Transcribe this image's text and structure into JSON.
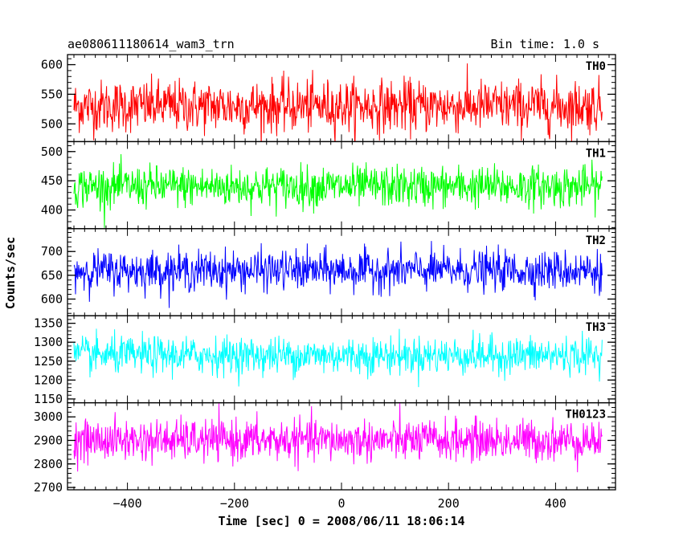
{
  "header": {
    "title": "ae080611180614_wam3_trn",
    "bin_time": "Bin time: 1.0 s"
  },
  "chart_data": {
    "type": "line",
    "xlabel": "Time [sec] 0 = 2008/06/11 18:06:14",
    "ylabel": "Counts/sec",
    "xlim": [
      -512,
      512
    ],
    "x_range": [
      -500,
      487
    ],
    "x_ticks": [
      -400,
      -200,
      0,
      200,
      400
    ],
    "grid": false,
    "panels": [
      {
        "name": "TH0",
        "color": "#ff0000",
        "mean": 530,
        "spread": 40,
        "ylim": [
          470,
          617
        ],
        "y_ticks": [
          500,
          550,
          600
        ]
      },
      {
        "name": "TH1",
        "color": "#00ff00",
        "mean": 440,
        "spread": 32,
        "ylim": [
          368,
          517
        ],
        "y_ticks": [
          400,
          450,
          500
        ]
      },
      {
        "name": "TH2",
        "color": "#0000ff",
        "mean": 660,
        "spread": 38,
        "ylim": [
          565,
          748
        ],
        "y_ticks": [
          600,
          650,
          700
        ]
      },
      {
        "name": "TH3",
        "color": "#00ffff",
        "mean": 1265,
        "spread": 45,
        "ylim": [
          1140,
          1370
        ],
        "y_ticks": [
          1150,
          1200,
          1250,
          1300,
          1350
        ]
      },
      {
        "name": "TH0123",
        "color": "#ff00ff",
        "mean": 2900,
        "spread": 80,
        "ylim": [
          2690,
          3060
        ],
        "y_ticks": [
          2700,
          2800,
          2900,
          3000
        ]
      }
    ]
  }
}
